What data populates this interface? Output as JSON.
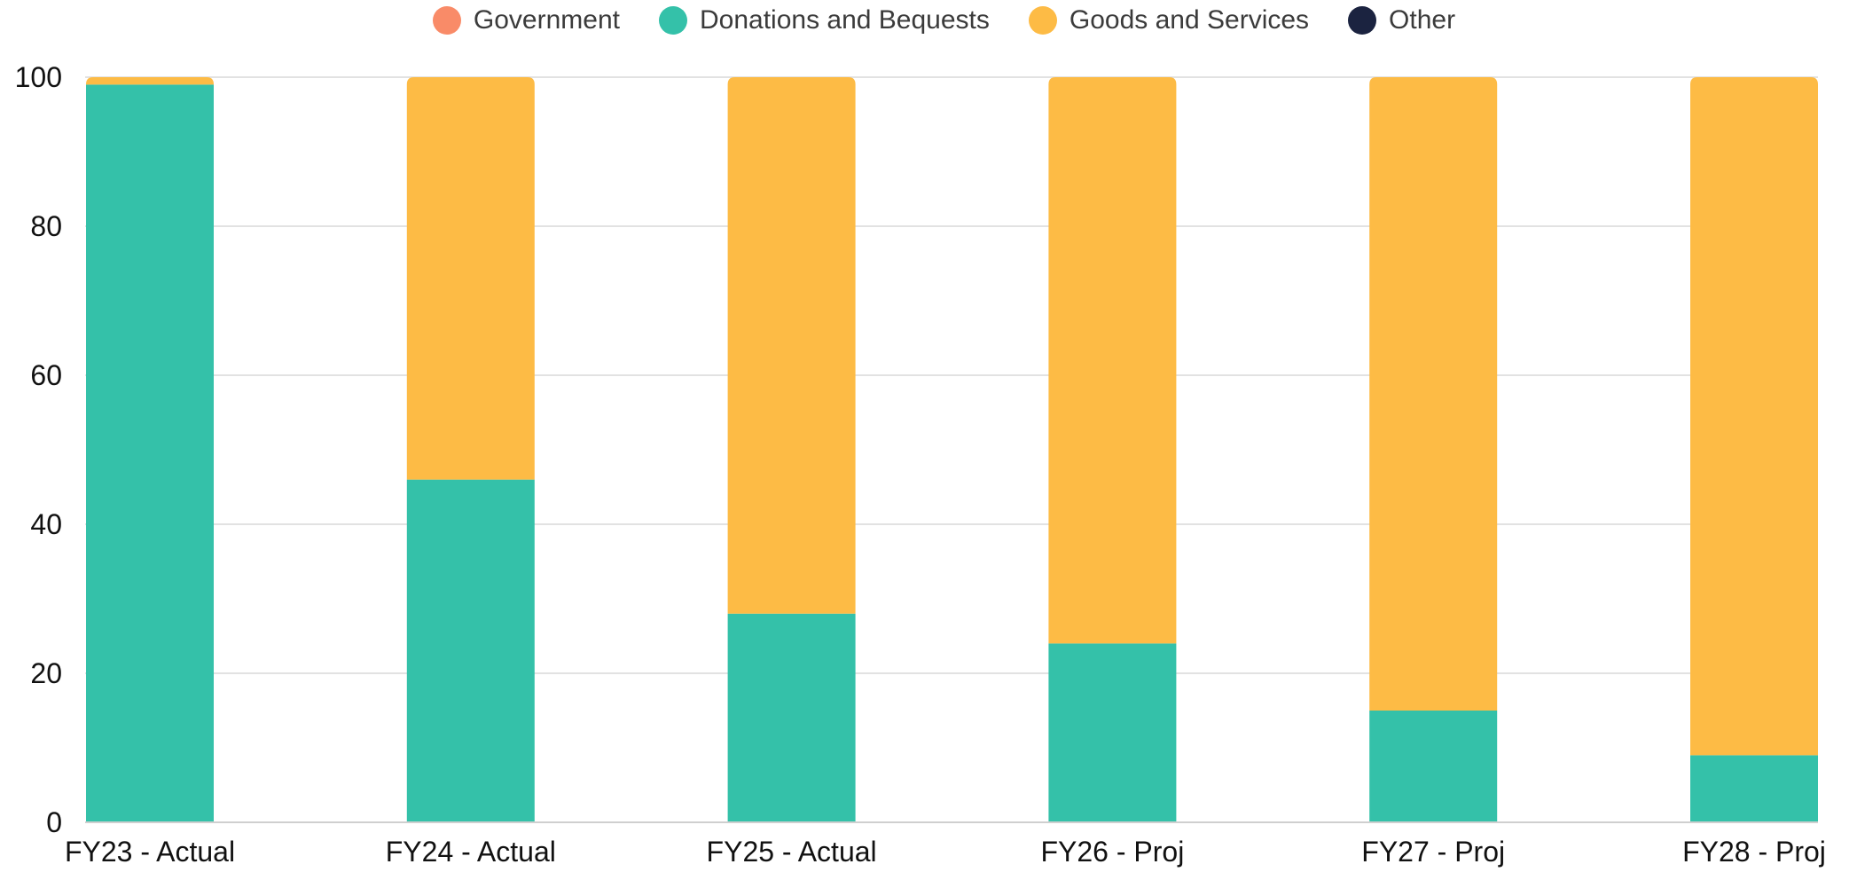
{
  "legend": [
    {
      "name": "Government",
      "color": "#f98b68"
    },
    {
      "name": "Donations and Bequests",
      "color": "#34c1a9"
    },
    {
      "name": "Goods and Services",
      "color": "#fdbb45"
    },
    {
      "name": "Other",
      "color": "#1b2340"
    }
  ],
  "chart_data": {
    "type": "bar",
    "stacked": true,
    "categories": [
      "FY23 - Actual",
      "FY24 - Actual",
      "FY25 - Actual",
      "FY26 - Proj",
      "FY27 - Proj",
      "FY28 - Proj"
    ],
    "series": [
      {
        "name": "Government",
        "color": "#f98b68",
        "values": [
          0,
          0,
          0,
          0,
          0,
          0
        ]
      },
      {
        "name": "Donations and Bequests",
        "color": "#34c1a9",
        "values": [
          99,
          46,
          28,
          24,
          15,
          9
        ]
      },
      {
        "name": "Goods and Services",
        "color": "#fdbb45",
        "values": [
          1,
          54,
          72,
          76,
          85,
          91
        ]
      },
      {
        "name": "Other",
        "color": "#1b2340",
        "values": [
          0,
          0,
          0,
          0,
          0,
          0
        ]
      }
    ],
    "ylim": [
      0,
      100
    ],
    "yticks": [
      0,
      20,
      40,
      60,
      80,
      100
    ],
    "grid": true,
    "legend_position": "top-center"
  }
}
